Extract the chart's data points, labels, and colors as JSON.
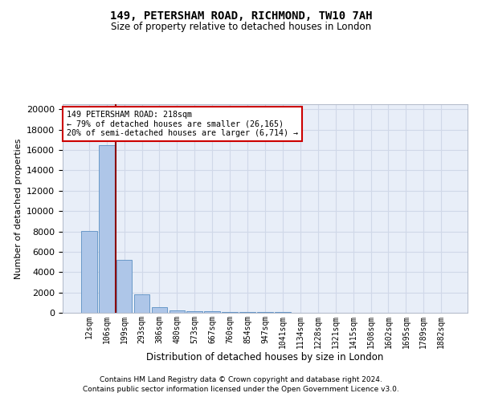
{
  "title": "149, PETERSHAM ROAD, RICHMOND, TW10 7AH",
  "subtitle": "Size of property relative to detached houses in London",
  "xlabel": "Distribution of detached houses by size in London",
  "ylabel": "Number of detached properties",
  "footer_line1": "Contains HM Land Registry data © Crown copyright and database right 2024.",
  "footer_line2": "Contains public sector information licensed under the Open Government Licence v3.0.",
  "bar_labels": [
    "12sqm",
    "106sqm",
    "199sqm",
    "293sqm",
    "386sqm",
    "480sqm",
    "573sqm",
    "667sqm",
    "760sqm",
    "854sqm",
    "947sqm",
    "1041sqm",
    "1134sqm",
    "1228sqm",
    "1321sqm",
    "1415sqm",
    "1508sqm",
    "1602sqm",
    "1695sqm",
    "1789sqm",
    "1882sqm"
  ],
  "bar_values": [
    8050,
    16500,
    5200,
    1850,
    550,
    250,
    175,
    120,
    100,
    75,
    55,
    40,
    30,
    20,
    15,
    10,
    8,
    6,
    4,
    3,
    2
  ],
  "bar_color": "#aec6e8",
  "bar_edge_color": "#5a8fc2",
  "vline_color": "#8b0000",
  "annotation_title": "149 PETERSHAM ROAD: 218sqm",
  "annotation_line2": "← 79% of detached houses are smaller (26,165)",
  "annotation_line3": "20% of semi-detached houses are larger (6,714) →",
  "annotation_box_color": "#ffffff",
  "annotation_box_edge": "#cc0000",
  "ylim": [
    0,
    20500
  ],
  "yticks": [
    0,
    2000,
    4000,
    6000,
    8000,
    10000,
    12000,
    14000,
    16000,
    18000,
    20000
  ],
  "background_color": "#ffffff",
  "grid_color": "#d0d8e8",
  "ax_facecolor": "#e8eef8"
}
